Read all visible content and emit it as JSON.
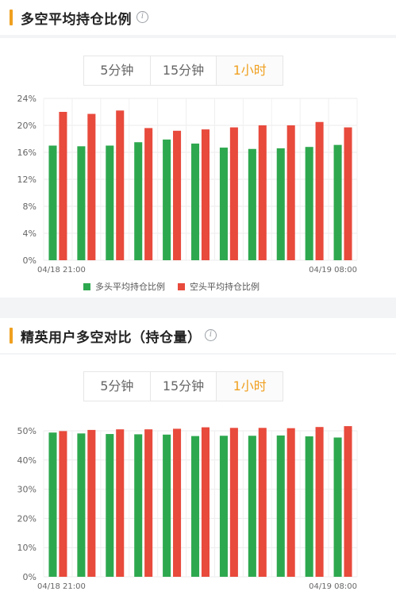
{
  "section1": {
    "title": "多空平均持仓比例",
    "tabs": [
      "5分钟",
      "15分钟",
      "1小时"
    ],
    "active_tab": 2
  },
  "section2": {
    "title": "精英用户多空对比（持仓量）",
    "tabs": [
      "5分钟",
      "15分钟",
      "1小时"
    ],
    "active_tab": 2
  },
  "colors": {
    "accent": "#f0a020",
    "long": "#2ea84f",
    "short": "#e84a3c"
  },
  "chart_data": [
    {
      "type": "bar",
      "x_tick_labels": [
        "04/18 21:00",
        "04/19 08:00"
      ],
      "y_ticks": [
        "0%",
        "4%",
        "8%",
        "12%",
        "16%",
        "20%",
        "24%"
      ],
      "ylim": [
        0,
        24
      ],
      "legend": "bottom",
      "series": [
        {
          "name": "多头平均持仓比例",
          "color": "#2ea84f",
          "values": [
            17.0,
            16.9,
            17.0,
            17.5,
            17.9,
            17.3,
            16.7,
            16.5,
            16.6,
            16.8,
            17.1
          ]
        },
        {
          "name": "空头平均持仓比例",
          "color": "#e84a3c",
          "values": [
            22.0,
            21.7,
            22.2,
            19.6,
            19.2,
            19.4,
            19.7,
            20.0,
            20.0,
            20.5,
            19.7
          ]
        }
      ]
    },
    {
      "type": "bar",
      "x_tick_labels": [
        "04/18 21:00",
        "04/19 08:00"
      ],
      "y_ticks": [
        "0%",
        "10%",
        "20%",
        "30%",
        "40%",
        "50%"
      ],
      "ylim": [
        0,
        50
      ],
      "series": [
        {
          "color": "#2ea84f",
          "values": [
            49.4,
            49.1,
            48.9,
            48.8,
            48.7,
            48.2,
            48.3,
            48.3,
            48.4,
            48.1,
            47.7
          ]
        },
        {
          "color": "#e84a3c",
          "values": [
            49.9,
            50.3,
            50.5,
            50.5,
            50.7,
            51.2,
            51.0,
            51.0,
            50.9,
            51.3,
            51.6
          ]
        }
      ]
    }
  ]
}
